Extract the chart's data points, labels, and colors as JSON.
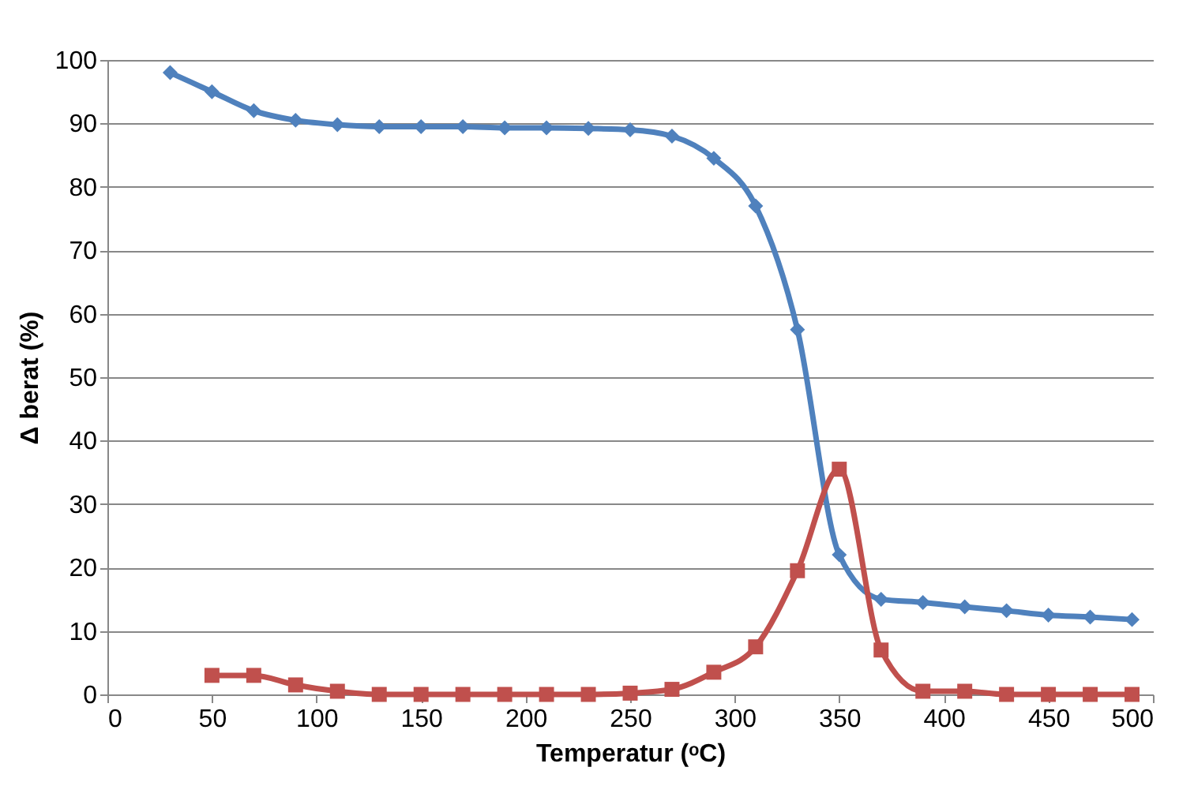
{
  "chart_data": {
    "type": "line",
    "xlabel": "Temperatur (ᵒC)",
    "ylabel": "Δ berat (%)",
    "xlim": [
      0,
      500
    ],
    "xticks": [
      0,
      50,
      100,
      150,
      200,
      250,
      300,
      350,
      400,
      450,
      500
    ],
    "ylim": [
      0,
      100
    ],
    "yticks": [
      0,
      10,
      20,
      30,
      40,
      50,
      60,
      70,
      80,
      90,
      100
    ],
    "grid": "y",
    "x": [
      30,
      50,
      70,
      90,
      110,
      130,
      150,
      170,
      190,
      210,
      230,
      250,
      270,
      290,
      310,
      330,
      350,
      370,
      390,
      410,
      430,
      450,
      470,
      490
    ],
    "series": [
      {
        "color": "#4f81bd",
        "marker": "diamond",
        "values": [
          98,
          95,
          92,
          90.5,
          89.8,
          89.5,
          89.5,
          89.5,
          89.3,
          89.3,
          89.2,
          89,
          88,
          84.5,
          77,
          57.5,
          22,
          15,
          14.5,
          13.8,
          13.2,
          12.5,
          12.2,
          11.8
        ]
      },
      {
        "color": "#c0504d",
        "marker": "square",
        "values": [
          null,
          3,
          3,
          1.5,
          0.5,
          0,
          0,
          0,
          0,
          0,
          0,
          0.2,
          0.8,
          3.5,
          7.5,
          19.5,
          35.5,
          7,
          0.5,
          0.5,
          0,
          0,
          0,
          0
        ]
      }
    ]
  }
}
